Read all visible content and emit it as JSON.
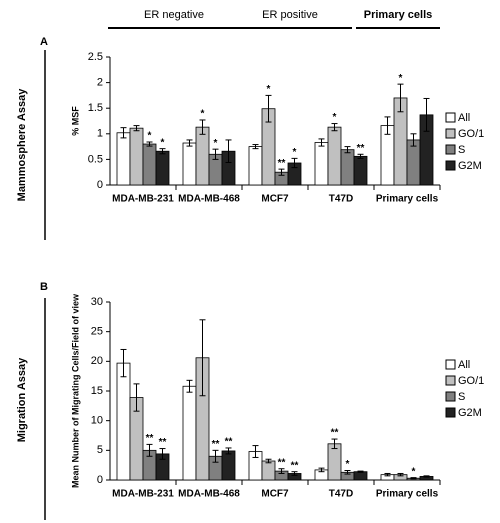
{
  "header_groups": [
    {
      "label": "ER negative"
    },
    {
      "label": "ER positive"
    },
    {
      "label": "Primary cells"
    }
  ],
  "chart_data": [
    {
      "type": "bar",
      "panel_label": "A",
      "section_label": "Mammosphere Assay",
      "y_label": "% MSF",
      "categories": [
        "MDA-MB-231",
        "MDA-MB-468",
        "MCF7",
        "T47D",
        "Primary cells"
      ],
      "series": [
        {
          "name": "All",
          "color": "#ffffff",
          "values": [
            1.02,
            0.82,
            0.75,
            0.83,
            1.16
          ],
          "errors": [
            0.1,
            0.06,
            0.04,
            0.07,
            0.17
          ],
          "annotations": [
            null,
            null,
            null,
            null,
            null
          ]
        },
        {
          "name": "GO/1",
          "color": "#c0c0c0",
          "values": [
            1.11,
            1.13,
            1.49,
            1.13,
            1.7
          ],
          "errors": [
            0.05,
            0.14,
            0.26,
            0.07,
            0.27
          ],
          "annotations": [
            null,
            "*",
            "*",
            "*",
            "*"
          ]
        },
        {
          "name": "S",
          "color": "#808080",
          "values": [
            0.8,
            0.6,
            0.25,
            0.69,
            0.88
          ],
          "errors": [
            0.04,
            0.1,
            0.06,
            0.06,
            0.12
          ],
          "annotations": [
            "*",
            "*",
            "**",
            null,
            null
          ]
        },
        {
          "name": "G2M",
          "color": "#222222",
          "values": [
            0.66,
            0.66,
            0.43,
            0.56,
            1.37
          ],
          "errors": [
            0.05,
            0.22,
            0.09,
            0.04,
            0.32
          ],
          "annotations": [
            "*",
            null,
            "*",
            "**",
            null
          ]
        }
      ],
      "ylim": [
        0,
        2.5
      ],
      "yticks": [
        0,
        0.5,
        1,
        1.5,
        2,
        2.5
      ],
      "legend": "right"
    },
    {
      "type": "bar",
      "panel_label": "B",
      "section_label": "Migration Assay",
      "y_label": "Mean Number of Migrating Cells/Field of view",
      "categories": [
        "MDA-MB-231",
        "MDA-MB-468",
        "MCF7",
        "T47D",
        "Primary cells"
      ],
      "series": [
        {
          "name": "All",
          "color": "#ffffff",
          "values": [
            19.7,
            15.8,
            4.8,
            1.7,
            0.9
          ],
          "errors": [
            2.3,
            1.0,
            1.0,
            0.3,
            0.2
          ],
          "annotations": [
            null,
            null,
            null,
            null,
            null
          ]
        },
        {
          "name": "GO/1",
          "color": "#c0c0c0",
          "values": [
            13.9,
            20.6,
            3.2,
            6.1,
            0.9
          ],
          "errors": [
            2.3,
            6.4,
            0.3,
            0.8,
            0.2
          ],
          "annotations": [
            null,
            null,
            null,
            "**",
            null
          ]
        },
        {
          "name": "S",
          "color": "#808080",
          "values": [
            5.0,
            4.0,
            1.5,
            1.3,
            0.3
          ],
          "errors": [
            1.0,
            1.0,
            0.4,
            0.3,
            0.1
          ],
          "annotations": [
            "**",
            "**",
            "**",
            "*",
            "*"
          ]
        },
        {
          "name": "G2M",
          "color": "#222222",
          "values": [
            4.4,
            4.9,
            1.1,
            1.4,
            0.6
          ],
          "errors": [
            0.9,
            0.5,
            0.3,
            0.1,
            0.1
          ],
          "annotations": [
            "**",
            "**",
            "**",
            null,
            null
          ]
        }
      ],
      "ylim": [
        0,
        30
      ],
      "yticks": [
        0,
        5,
        10,
        15,
        20,
        25,
        30
      ],
      "legend": "right"
    }
  ]
}
